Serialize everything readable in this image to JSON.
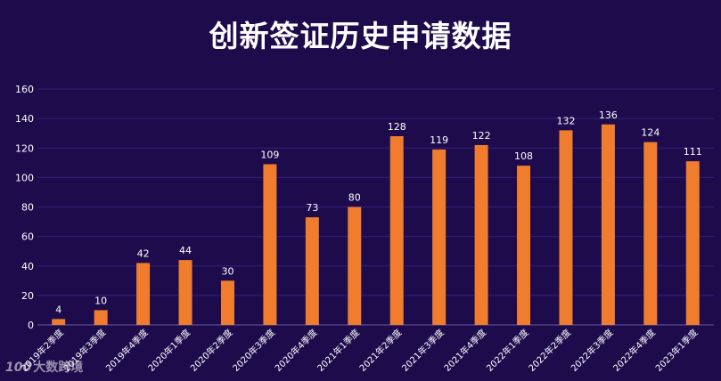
{
  "chart_data": {
    "type": "bar",
    "title": "创新签证历史申请数据",
    "categories": [
      "2019年2季度",
      "2019年3季度",
      "2019年4季度",
      "2020年1季度",
      "2020年2季度",
      "2020年3季度",
      "2020年4季度",
      "2021年1季度",
      "2021年2季度",
      "2021年3季度",
      "2021年4季度",
      "2022年1季度",
      "2022年2季度",
      "2022年3季度",
      "2022年4季度",
      "2023年1季度"
    ],
    "values": [
      4,
      10,
      42,
      44,
      30,
      109,
      73,
      80,
      128,
      119,
      122,
      108,
      132,
      136,
      124,
      111
    ],
    "ylim": [
      0,
      160
    ],
    "yticks": [
      0,
      20,
      40,
      60,
      80,
      100,
      120,
      140,
      160
    ],
    "grid": true,
    "bar_color": "#f07d2e",
    "background_color": "#1d0b4c",
    "grid_color": "#34217a"
  },
  "watermark": {
    "logo": "100",
    "text": "大数跨境"
  }
}
